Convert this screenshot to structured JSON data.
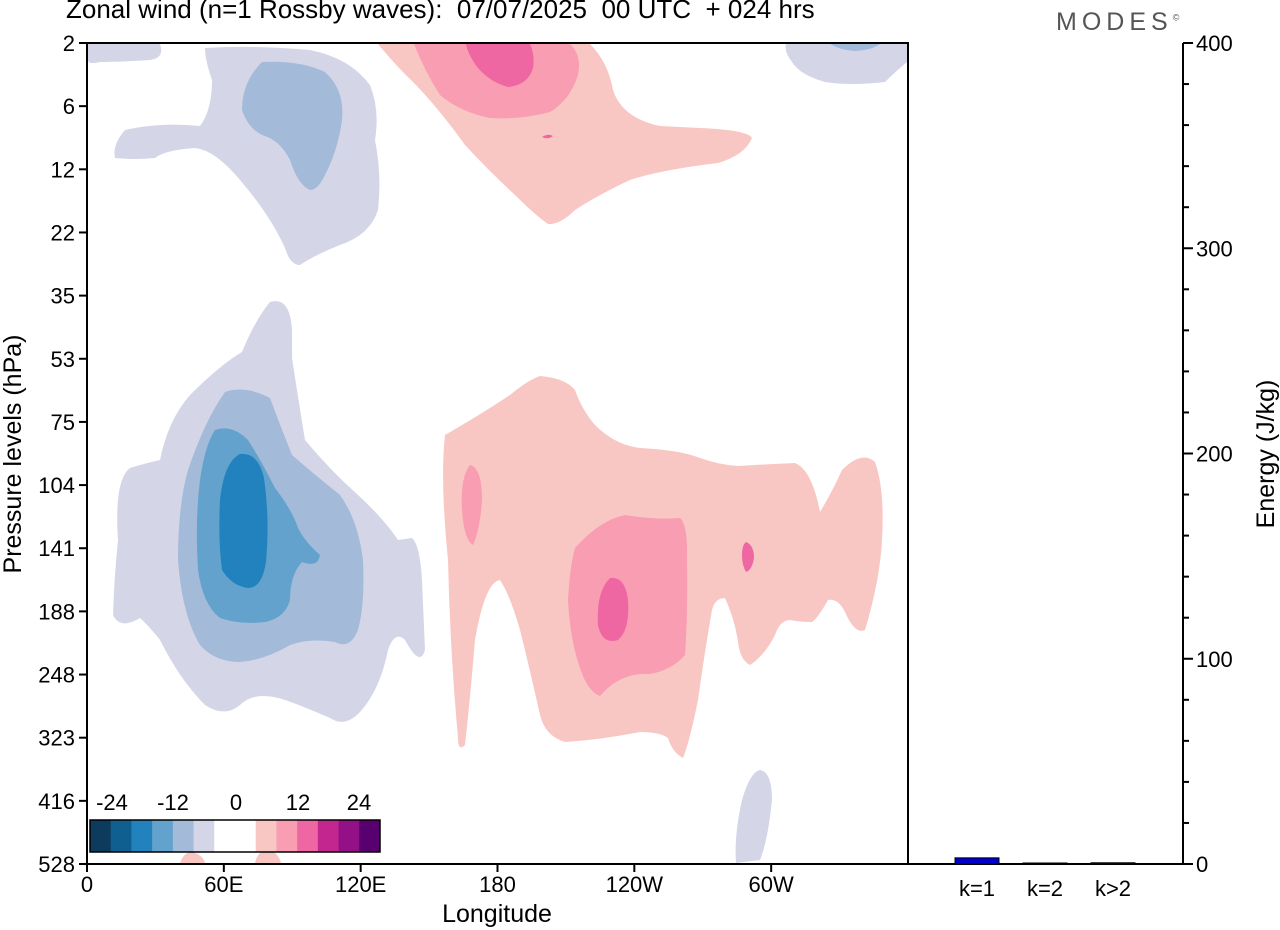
{
  "title": "Zonal wind (n=1 Rossby waves):  07/07/2025  00 UTC  + 024 hrs",
  "logo": "MODES",
  "logo_mark": "©",
  "chart_data": [
    {
      "type": "heatmap",
      "title": "Zonal wind (n=1 Rossby waves):  07/07/2025  00 UTC  + 024 hrs",
      "xlabel": "Longitude",
      "ylabel": "Pressure levels (hPa)",
      "x_ticks": [
        "0",
        "60E",
        "120E",
        "180",
        "120W",
        "60W"
      ],
      "x_tick_values": [
        0,
        60,
        120,
        180,
        240,
        300
      ],
      "xlim": [
        0,
        360
      ],
      "y_ticks": [
        "2",
        "6",
        "12",
        "22",
        "35",
        "53",
        "75",
        "104",
        "141",
        "188",
        "248",
        "323",
        "416",
        "528"
      ],
      "y_axis_inverted": true,
      "colorbar": {
        "labels": [
          "-24",
          "-12",
          "0",
          "12",
          "24"
        ],
        "colors": [
          "#0d3b5e",
          "#0f5f91",
          "#2182bd",
          "#63a2cc",
          "#a3bad9",
          "#d4d6e8",
          "#ffffff",
          "#ffffff",
          "#f9c7c3",
          "#f89db2",
          "#ee66a2",
          "#c4268f",
          "#931086",
          "#590070"
        ]
      },
      "features": [
        {
          "sign": "easterly",
          "min_value": -20,
          "longitude_deg_east": 68,
          "pressure_hPa": 141
        },
        {
          "sign": "easterly",
          "min_value": -8,
          "longitude_deg_east": 45,
          "pressure_hPa": 8
        },
        {
          "sign": "easterly",
          "min_value": -4,
          "longitude_deg_east": 340,
          "pressure_hPa": 2
        },
        {
          "sign": "easterly",
          "min_value": -4,
          "longitude_deg_east": 290,
          "pressure_hPa": 470
        },
        {
          "sign": "westerly",
          "max_value": 16,
          "longitude_deg_east": 230,
          "pressure_hPa": 188
        },
        {
          "sign": "westerly",
          "max_value": 16,
          "longitude_deg_east": 185,
          "pressure_hPa": 3
        },
        {
          "sign": "westerly",
          "max_value": 12,
          "longitude_deg_east": 167,
          "pressure_hPa": 120
        }
      ]
    },
    {
      "type": "bar",
      "categories": [
        "k=1",
        "k=2",
        "k>2"
      ],
      "values": [
        3.0,
        0.4,
        0.6
      ],
      "ylabel": "Energy (J/kg)",
      "ylim": [
        0,
        400
      ],
      "y_ticks": [
        "0",
        "100",
        "200",
        "300",
        "400"
      ],
      "bar_color": "#0000cc"
    }
  ]
}
